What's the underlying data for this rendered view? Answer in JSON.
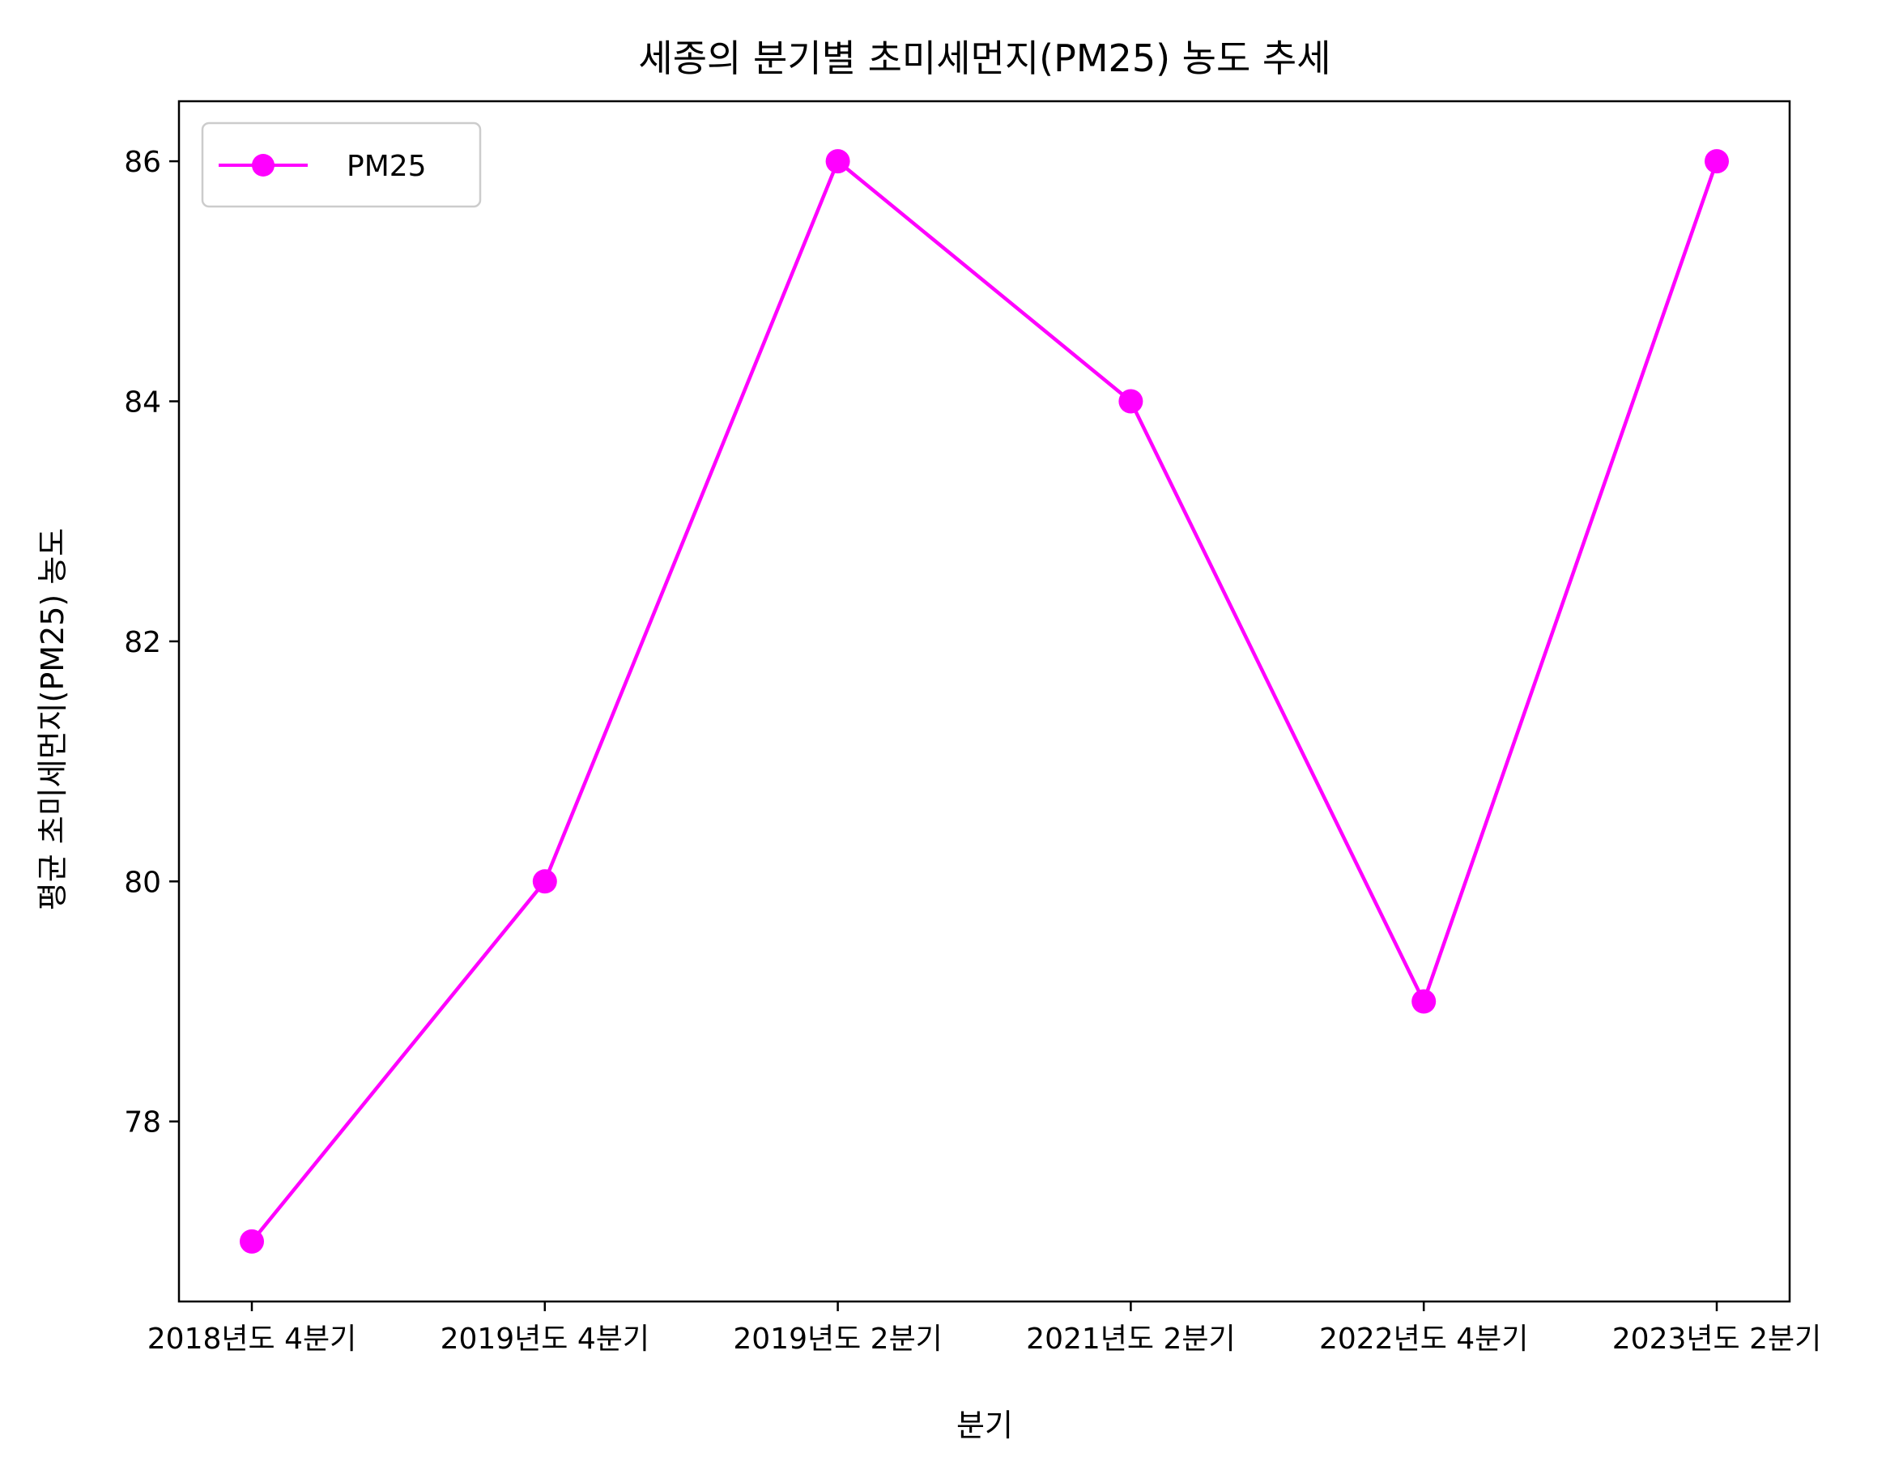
{
  "chart_data": {
    "type": "line",
    "title": "세종의 분기별 초미세먼지(PM25) 농도 추세",
    "xlabel": "분기",
    "ylabel": "평균 초미세먼지(PM25) 농도",
    "categories": [
      "2018년도 4분기",
      "2019년도 4분기",
      "2019년도 2분기",
      "2021년도 2분기",
      "2022년도 4분기",
      "2023년도 2분기"
    ],
    "series": [
      {
        "name": "PM25",
        "values": [
          77,
          80,
          86,
          84,
          79,
          86
        ],
        "color": "#ff00ff",
        "marker": "circle"
      }
    ],
    "yticks": [
      78,
      80,
      82,
      84,
      86
    ],
    "ylim": [
      76.5,
      86.5
    ],
    "grid": false,
    "legend_position": "upper-left"
  }
}
